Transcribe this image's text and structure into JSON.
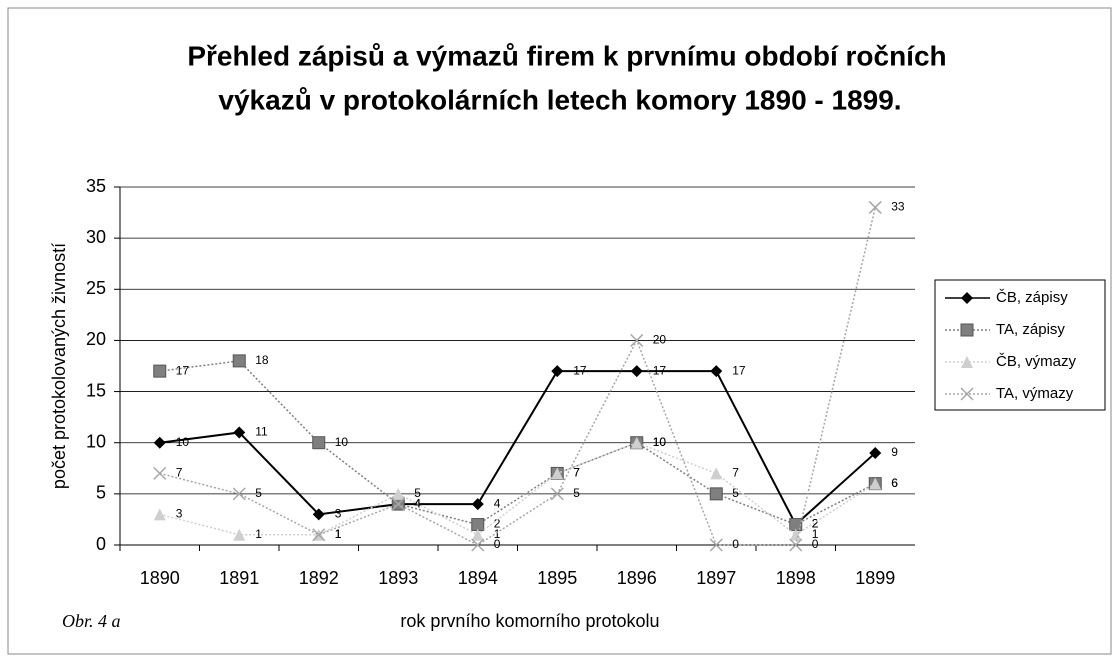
{
  "chart_data": {
    "type": "line",
    "title": "Přehled zápisů a výmazů firem k prvnímu období ročních",
    "subtitle": "výkazů v protokolárních letech komory 1890 - 1899.",
    "x_label": "rok prvního komorního protokolu",
    "y_label": "počet protokolovaných živností",
    "annotation": "Obr. 4 a",
    "categories": [
      "1890",
      "1891",
      "1892",
      "1893",
      "1894",
      "1895",
      "1896",
      "1897",
      "1898",
      "1899"
    ],
    "series": [
      {
        "name": "ČB, zápisy",
        "color": "#000000",
        "marker": "diamond",
        "values": [
          10,
          11,
          3,
          4,
          4,
          17,
          17,
          17,
          2,
          9
        ]
      },
      {
        "name": "TA, zápisy",
        "color": "#7f7f7f",
        "marker": "square",
        "values": [
          17,
          18,
          10,
          4,
          2,
          7,
          10,
          5,
          2,
          6
        ]
      },
      {
        "name": "ČB, výmazy",
        "color": "#cfcfcf",
        "marker": "triangle",
        "values": [
          3,
          1,
          1,
          5,
          1,
          7,
          10,
          7,
          1,
          6
        ]
      },
      {
        "name": "TA, výmazy",
        "color": "#a6a6a6",
        "marker": "x",
        "values": [
          7,
          5,
          1,
          4,
          0,
          5,
          20,
          0,
          0,
          33
        ]
      }
    ],
    "ylim": [
      0,
      35
    ],
    "yticks": [
      0,
      5,
      10,
      15,
      20,
      25,
      30,
      35
    ],
    "grid": true,
    "legend": "right"
  }
}
